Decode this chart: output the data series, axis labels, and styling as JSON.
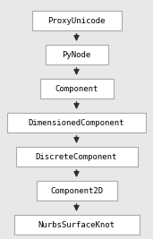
{
  "nodes": [
    "ProxyUnicode",
    "PyNode",
    "Component",
    "DimensionedComponent",
    "DiscreteComponent",
    "Component2D",
    "NurbsSurfaceKnot"
  ],
  "bg_color": "#e8e8e8",
  "box_facecolor": "#ffffff",
  "box_edgecolor": "#aaaaaa",
  "arrow_color": "#303030",
  "text_color": "#000000",
  "font_size": 6.5,
  "fig_width": 1.71,
  "fig_height": 2.67,
  "dpi": 100
}
